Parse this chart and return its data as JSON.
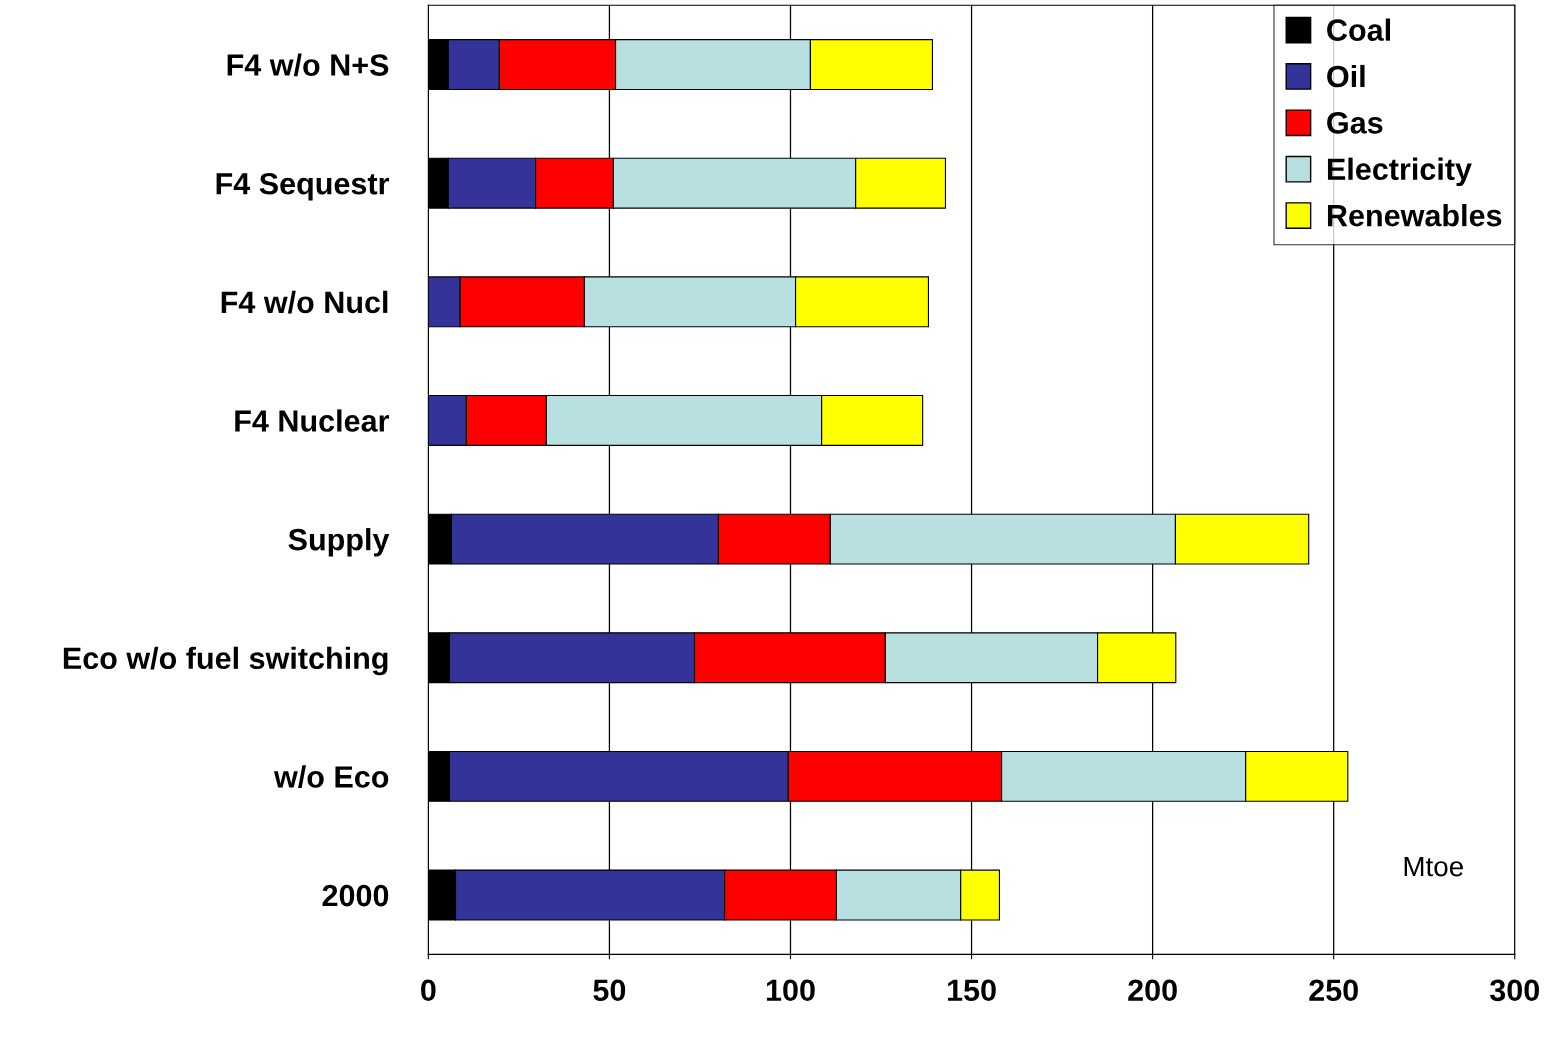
{
  "chart_data": {
    "type": "bar",
    "orientation": "horizontal",
    "stacked": true,
    "categories": [
      "F4 w/o N+S",
      "F4 Sequestr",
      "F4 w/o Nucl",
      "F4 Nuclear",
      "Supply",
      "Eco w/o fuel switching",
      "w/o Eco",
      "2000"
    ],
    "series": [
      {
        "name": "Coal",
        "color": "#000000",
        "values": [
          5.5,
          5.5,
          0,
          0,
          6.4,
          5.8,
          5.8,
          7.5
        ]
      },
      {
        "name": "Oil",
        "color": "#333399",
        "values": [
          14.1,
          24.1,
          8.8,
          10.5,
          73.7,
          67.7,
          93.6,
          74.3
        ]
      },
      {
        "name": "Gas",
        "color": "#ff0000",
        "values": [
          32.1,
          21.5,
          34.3,
          22.1,
          30.9,
          52.7,
          58.9,
          30.9
        ]
      },
      {
        "name": "Electricity",
        "color": "#b8e0e0",
        "values": [
          53.8,
          66.9,
          58.3,
          76.0,
          95.3,
          58.6,
          67.4,
          34.3
        ]
      },
      {
        "name": "Renewables",
        "color": "#ffff00",
        "values": [
          33.7,
          24.8,
          36.7,
          27.9,
          36.8,
          21.6,
          28.2,
          10.7
        ]
      }
    ],
    "xlim": [
      0,
      300
    ],
    "xticks": [
      0,
      50,
      100,
      150,
      200,
      250,
      300
    ],
    "grid": "x",
    "legend": "top right",
    "annotations": [
      "Mtoe"
    ]
  }
}
